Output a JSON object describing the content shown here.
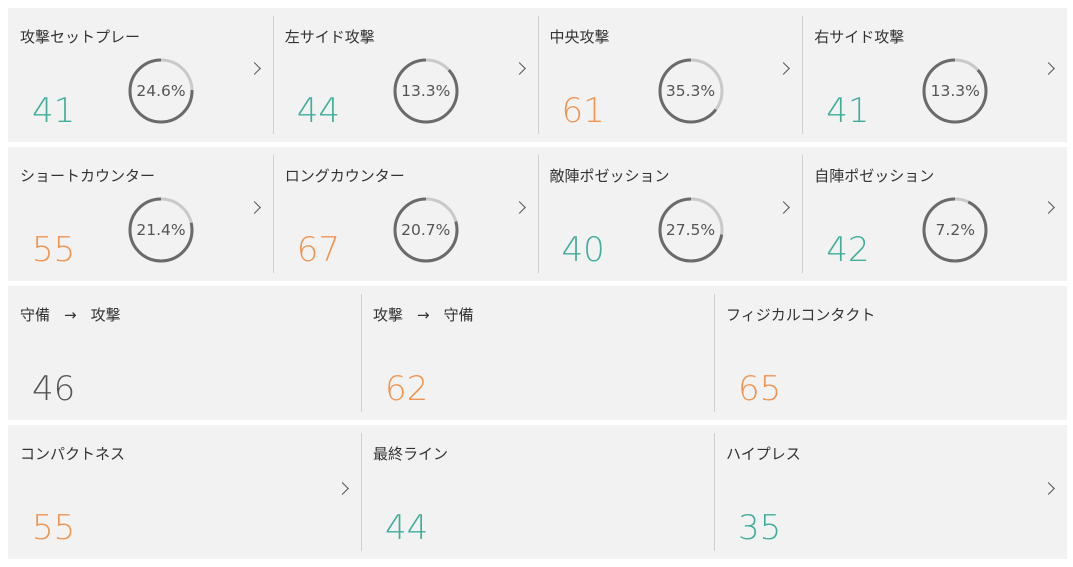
{
  "colors": {
    "green": "#3fae9b",
    "orange": "#f0944f",
    "gray": "#555555"
  },
  "row1": [
    {
      "label": "攻撃セットプレー",
      "value": "41",
      "pct": "24.6%",
      "pct_value": 24.6,
      "color": "green"
    },
    {
      "label": "左サイド攻撃",
      "value": "44",
      "pct": "13.3%",
      "pct_value": 13.3,
      "color": "green"
    },
    {
      "label": "中央攻撃",
      "value": "61",
      "pct": "35.3%",
      "pct_value": 35.3,
      "color": "orange"
    },
    {
      "label": "右サイド攻撃",
      "value": "41",
      "pct": "13.3%",
      "pct_value": 13.3,
      "color": "green"
    }
  ],
  "row2": [
    {
      "label": "ショートカウンター",
      "value": "55",
      "pct": "21.4%",
      "pct_value": 21.4,
      "color": "orange"
    },
    {
      "label": "ロングカウンター",
      "value": "67",
      "pct": "20.7%",
      "pct_value": 20.7,
      "color": "orange"
    },
    {
      "label": "敵陣ポゼッション",
      "value": "40",
      "pct": "27.5%",
      "pct_value": 27.5,
      "color": "green"
    },
    {
      "label": "自陣ポゼッション",
      "value": "42",
      "pct": "7.2%",
      "pct_value": 7.2,
      "color": "green"
    }
  ],
  "row3": [
    {
      "label_a": "守備",
      "arrow": "→",
      "label_b": "攻撃",
      "value": "46",
      "color": "gray"
    },
    {
      "label_a": "攻撃",
      "arrow": "→",
      "label_b": "守備",
      "value": "62",
      "color": "orange"
    },
    {
      "label": "フィジカルコンタクト",
      "value": "65",
      "color": "orange"
    }
  ],
  "row4": [
    {
      "label": "コンパクトネス",
      "value": "55",
      "color": "orange"
    },
    {
      "label": "最終ライン",
      "value": "44",
      "color": "green"
    },
    {
      "label": "ハイプレス",
      "value": "35",
      "color": "green"
    }
  ]
}
